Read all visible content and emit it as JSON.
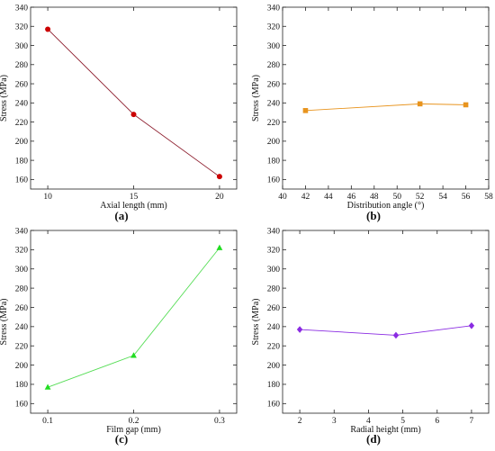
{
  "chart_data": [
    {
      "type": "line",
      "panel_label": "a",
      "xlabel": "Axial length (mm)",
      "ylabel": "Stress (MPa)",
      "xlim": [
        9,
        21
      ],
      "xticks": [
        10,
        15,
        20
      ],
      "ylim": [
        150,
        340
      ],
      "yticks": [
        160,
        180,
        200,
        220,
        240,
        260,
        280,
        300,
        320,
        340
      ],
      "marker": "circle",
      "color": "#cc0000",
      "line_color": "#8b1a2a",
      "series": [
        {
          "x": [
            10,
            15,
            20
          ],
          "y": [
            317,
            228,
            163
          ]
        }
      ]
    },
    {
      "type": "line",
      "panel_label": "b",
      "xlabel": "Distribution angle (°)",
      "ylabel": "Stress (MPa)",
      "xlim": [
        40,
        58
      ],
      "xticks": [
        40,
        42,
        44,
        46,
        48,
        50,
        52,
        54,
        56,
        58
      ],
      "ylim": [
        150,
        340
      ],
      "yticks": [
        160,
        180,
        200,
        220,
        240,
        260,
        280,
        300,
        320,
        340
      ],
      "marker": "square",
      "color": "#e8941e",
      "line_color": "#e8941e",
      "series": [
        {
          "x": [
            42,
            52,
            56
          ],
          "y": [
            232,
            239,
            238
          ]
        }
      ]
    },
    {
      "type": "line",
      "panel_label": "c",
      "xlabel": "Film gap (mm)",
      "ylabel": "Stress (MPa)",
      "xlim": [
        0.08,
        0.32
      ],
      "xticks": [
        0.1,
        0.2,
        0.3
      ],
      "ylim": [
        150,
        340
      ],
      "yticks": [
        160,
        180,
        200,
        220,
        240,
        260,
        280,
        300,
        320,
        340
      ],
      "marker": "triangle",
      "color": "#22dd22",
      "line_color": "#55dd55",
      "series": [
        {
          "x": [
            0.1,
            0.2,
            0.3
          ],
          "y": [
            177,
            210,
            322
          ]
        }
      ]
    },
    {
      "type": "line",
      "panel_label": "d",
      "xlabel": "Radial height (mm)",
      "ylabel": "Stress (MPa)",
      "xlim": [
        1.5,
        7.5
      ],
      "xticks": [
        2,
        3,
        4,
        5,
        6,
        7
      ],
      "ylim": [
        150,
        340
      ],
      "yticks": [
        160,
        180,
        200,
        220,
        240,
        260,
        280,
        300,
        320,
        340
      ],
      "marker": "diamond",
      "color": "#8a2be2",
      "line_color": "#8a2be2",
      "series": [
        {
          "x": [
            2,
            4.8,
            7
          ],
          "y": [
            237,
            231,
            241
          ]
        }
      ]
    }
  ],
  "panel_captions": [
    "(a)",
    "(b)",
    "(c)",
    "(d)"
  ]
}
